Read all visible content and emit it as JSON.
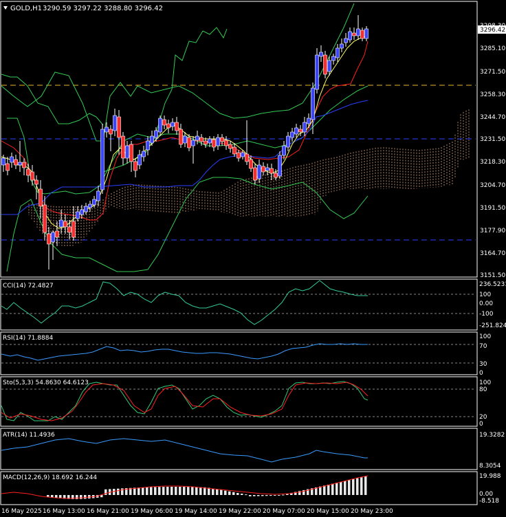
{
  "header": {
    "symbol": "GOLD,H1",
    "ohlc": "3290.59 3297.22 3288.80 3296.42"
  },
  "colors": {
    "background": "#000000",
    "frame": "#ffffff",
    "bull_candle": "#3b45ff",
    "bear_candle": "#ff2a2a",
    "ma_fast": "#ffff66",
    "ma_mid": "#ff2020",
    "ma_slow": "#2a3fff",
    "bands": "#33cc55",
    "cloud": "#d8a07a",
    "level_orange": "#e6b830",
    "level_blue": "#2a3fff",
    "indicator_line": "#3a9bff",
    "stoch_signal": "#ff2020",
    "stoch_main": "#33cc77",
    "macd_hist": "#ffffff",
    "macd_signal": "#ff2020"
  },
  "main_axis": {
    "price_current": "3296.42",
    "price_top_hidden": "3298.30",
    "ticks": [
      "3285.10",
      "3271.50",
      "3258.30",
      "3244.70",
      "3231.50",
      "3218.30",
      "3204.70",
      "3191.50",
      "3177.90",
      "3164.70",
      "3151.50"
    ]
  },
  "cci": {
    "label": "CCI(14) 72.4827",
    "ticks": [
      "236.5231",
      "100",
      "0.00",
      "-100",
      "-251.8241"
    ]
  },
  "rsi": {
    "label": "RSI(14) 71.8884",
    "ticks": [
      "100",
      "70",
      "30",
      "0"
    ]
  },
  "stoch": {
    "label": "Sto(5,3,3) 54.8630 64.6123",
    "ticks": [
      "100",
      "80",
      "20",
      "0"
    ]
  },
  "atr": {
    "label": "ATR(14) 11.4936",
    "ticks": [
      "19.3282",
      "8.3054"
    ]
  },
  "macd": {
    "label": "MACD(12,26,9) 18.692 16.244",
    "ticks": [
      "19.988",
      "0.00",
      "-8.518"
    ]
  },
  "time_axis": [
    "16 May 2025",
    "16 May 13:00",
    "16 May 21:00",
    "19 May 06:00",
    "19 May 14:00",
    "19 May 22:00",
    "20 May 07:00",
    "20 May 15:00",
    "20 May 23:00"
  ]
}
